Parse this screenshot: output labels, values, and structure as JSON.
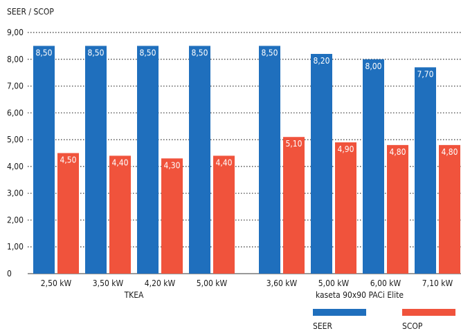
{
  "chart_data": {
    "type": "bar",
    "ylabel": "SEER / SCOP",
    "ylim": [
      0,
      9
    ],
    "yticks": [
      "0",
      "1,00",
      "2,00",
      "3,00",
      "4,00",
      "5,00",
      "6,00",
      "7,00",
      "8,00",
      "9,00"
    ],
    "grid": "horizontal dotted",
    "legend_position": "bottom-right",
    "categories": [
      "2,50 kW",
      "3,50 kW",
      "4,20 kW",
      "5,00 kW",
      "3,60 kW",
      "5,00 kW",
      "6,00 kW",
      "7,10 kW"
    ],
    "groups": [
      {
        "label": "TKEA",
        "categories": [
          "2,50 kW",
          "3,50 kW",
          "4,20 kW",
          "5,00 kW"
        ]
      },
      {
        "label": "kaseta 90x90 PACi Elite",
        "categories": [
          "3,60 kW",
          "5,00 kW",
          "6,00 kW",
          "7,10 kW"
        ]
      }
    ],
    "series": [
      {
        "name": "SEER",
        "color": "#1f6fbd",
        "values": [
          8.5,
          8.5,
          8.5,
          8.5,
          8.5,
          8.2,
          8.0,
          7.7
        ],
        "labels": [
          "8,50",
          "8,50",
          "8,50",
          "8,50",
          "8,50",
          "8,20",
          "8,00",
          "7,70"
        ]
      },
      {
        "name": "SCOP",
        "color": "#f0533c",
        "values": [
          4.5,
          4.4,
          4.3,
          4.4,
          5.1,
          4.9,
          4.8,
          4.8
        ],
        "labels": [
          "4,50",
          "4,40",
          "4,30",
          "4,40",
          "5,10",
          "4,90",
          "4,80",
          "4,80"
        ]
      }
    ]
  }
}
